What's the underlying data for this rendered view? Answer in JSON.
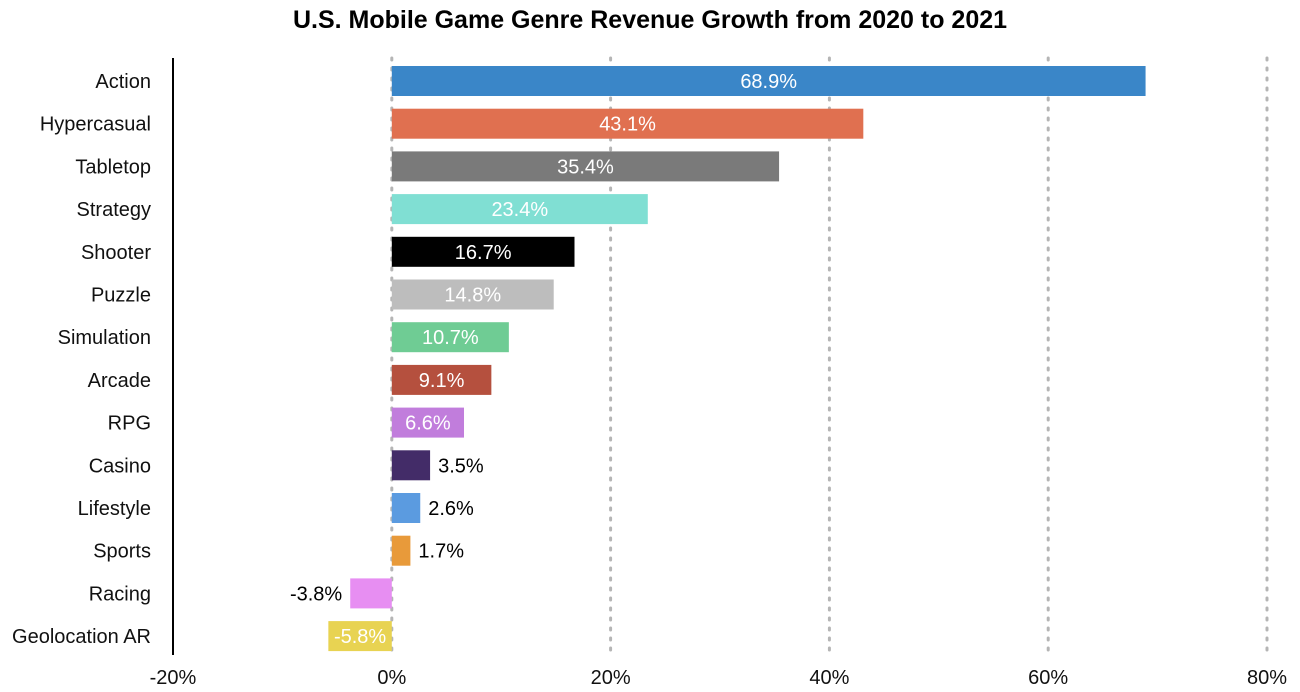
{
  "chart_data": {
    "type": "bar",
    "orientation": "horizontal",
    "title": "U.S. Mobile Game Genre Revenue Growth from 2020 to 2021",
    "xlabel": "",
    "ylabel": "",
    "xlim": [
      -20,
      80
    ],
    "grid": true,
    "categories": [
      "Action",
      "Hypercasual",
      "Tabletop",
      "Strategy",
      "Shooter",
      "Puzzle",
      "Simulation",
      "Arcade",
      "RPG",
      "Casino",
      "Lifestyle",
      "Sports",
      "Racing",
      "Geolocation AR"
    ],
    "values": [
      68.9,
      43.1,
      35.4,
      23.4,
      16.7,
      14.8,
      10.7,
      9.1,
      6.6,
      3.5,
      2.6,
      1.7,
      -3.8,
      -5.8
    ],
    "data_labels": [
      "68.9%",
      "43.1%",
      "35.4%",
      "23.4%",
      "16.7%",
      "14.8%",
      "10.7%",
      "9.1%",
      "6.6%",
      "3.5%",
      "2.6%",
      "1.7%",
      "-3.8%",
      "-5.8%"
    ],
    "colors": [
      "#3a86c8",
      "#e07050",
      "#7a7a7a",
      "#80dfd3",
      "#000000",
      "#bdbdbd",
      "#6fcc94",
      "#b5503e",
      "#c17ddc",
      "#432c68",
      "#5b9be0",
      "#e89a3a",
      "#e78ef2",
      "#e8d352"
    ],
    "label_inside": [
      true,
      true,
      true,
      true,
      true,
      true,
      true,
      true,
      true,
      false,
      false,
      false,
      false,
      true
    ],
    "label_colors": [
      "#ffffff",
      "#ffffff",
      "#ffffff",
      "#ffffff",
      "#ffffff",
      "#ffffff",
      "#ffffff",
      "#ffffff",
      "#ffffff",
      "#000000",
      "#000000",
      "#000000",
      "#000000",
      "#ffffff"
    ],
    "ticks": [
      -20,
      0,
      20,
      40,
      60,
      80
    ],
    "tick_labels": [
      "-20%",
      "0%",
      "20%",
      "40%",
      "60%",
      "80%"
    ]
  }
}
